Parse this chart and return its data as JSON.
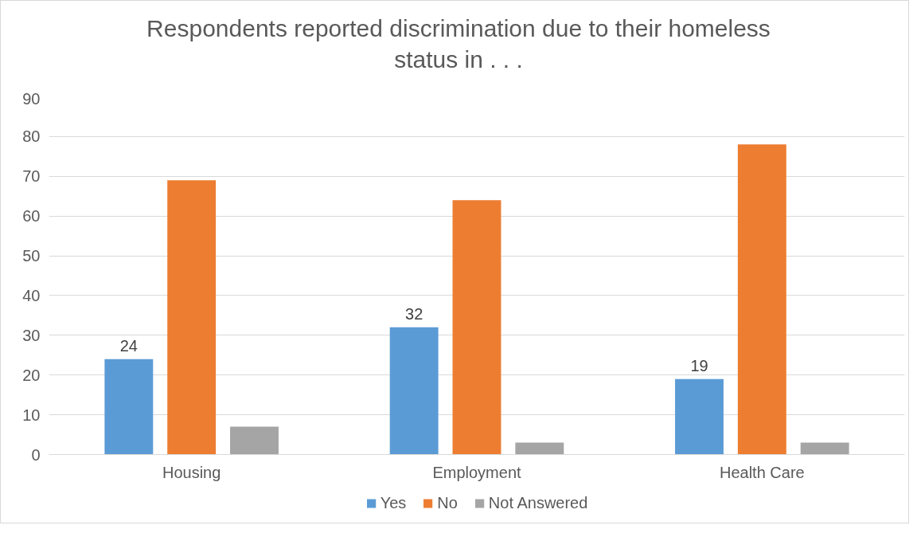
{
  "chart_data": {
    "type": "bar",
    "title": "Respondents reported discrimination due to their homeless status in . . .",
    "categories": [
      "Housing",
      "Employment",
      "Health Care"
    ],
    "series": [
      {
        "name": "Yes",
        "color": "#5b9bd5",
        "values": [
          24,
          32,
          19
        ],
        "value_labels": [
          "24",
          "32",
          "19"
        ]
      },
      {
        "name": "No",
        "color": "#ed7d31",
        "values": [
          69,
          64,
          78
        ]
      },
      {
        "name": "Not Answered",
        "color": "#a5a5a5",
        "values": [
          7,
          3,
          3
        ]
      }
    ],
    "ylim": [
      0,
      90
    ],
    "yticks": [
      0,
      10,
      20,
      30,
      40,
      50,
      60,
      70,
      80,
      90
    ],
    "grid": "y",
    "legend": "bottom"
  }
}
